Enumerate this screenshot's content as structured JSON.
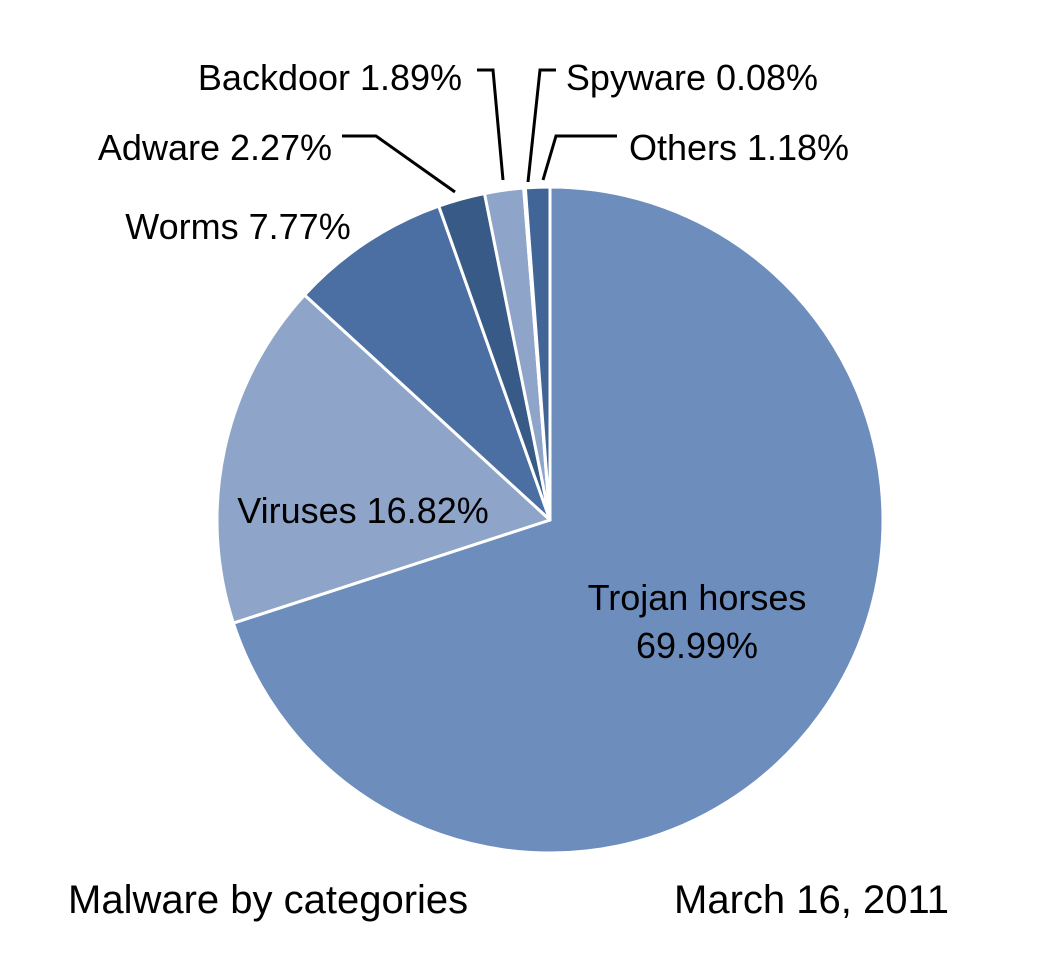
{
  "chart_data": {
    "type": "pie",
    "start_angle_deg": 0,
    "direction": "clockwise",
    "slices": [
      {
        "name": "Trojan horses",
        "value": 69.99,
        "label_lines": [
          "Trojan horses",
          "69.99%"
        ],
        "color": "#6d8dbd"
      },
      {
        "name": "Viruses",
        "value": 16.82,
        "label_lines": [
          "Viruses 16.82%"
        ],
        "color": "#8ea4c9"
      },
      {
        "name": "Worms",
        "value": 7.77,
        "label_lines": [
          "Worms 7.77%"
        ],
        "color": "#4b6ea3"
      },
      {
        "name": "Adware",
        "value": 2.27,
        "label_lines": [
          "Adware 2.27%"
        ],
        "color": "#385a86"
      },
      {
        "name": "Backdoor",
        "value": 1.89,
        "label_lines": [
          "Backdoor 1.89%"
        ],
        "color": "#8ea4c9"
      },
      {
        "name": "Spyware",
        "value": 0.08,
        "label_lines": [
          "Spyware 0.08%"
        ],
        "color": "#6d8dbd"
      },
      {
        "name": "Others",
        "value": 1.18,
        "label_lines": [
          "Others 1.18%"
        ],
        "color": "#416597"
      }
    ],
    "caption_left": "Malware by categories",
    "caption_right": "March 16, 2011"
  }
}
